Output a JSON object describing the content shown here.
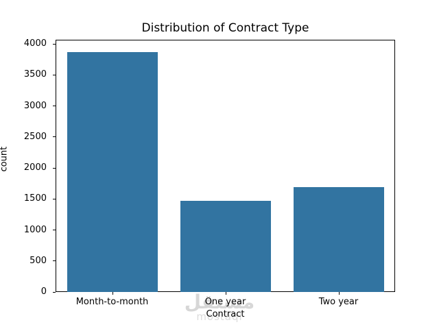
{
  "chart_data": {
    "type": "bar",
    "title": "Distribution of Contract Type",
    "xlabel": "Contract",
    "ylabel": "count",
    "categories": [
      "Month-to-month",
      "One year",
      "Two year"
    ],
    "values": [
      3875,
      1473,
      1695
    ],
    "yticks": [
      0,
      500,
      1000,
      1500,
      2000,
      2500,
      3000,
      3500,
      4000
    ],
    "ylim": [
      0,
      4068.75
    ],
    "bar_color": "#3274a1",
    "grid": false,
    "legend": null
  },
  "watermark": {
    "line1": "مستقل",
    "line2": "mostaql"
  }
}
